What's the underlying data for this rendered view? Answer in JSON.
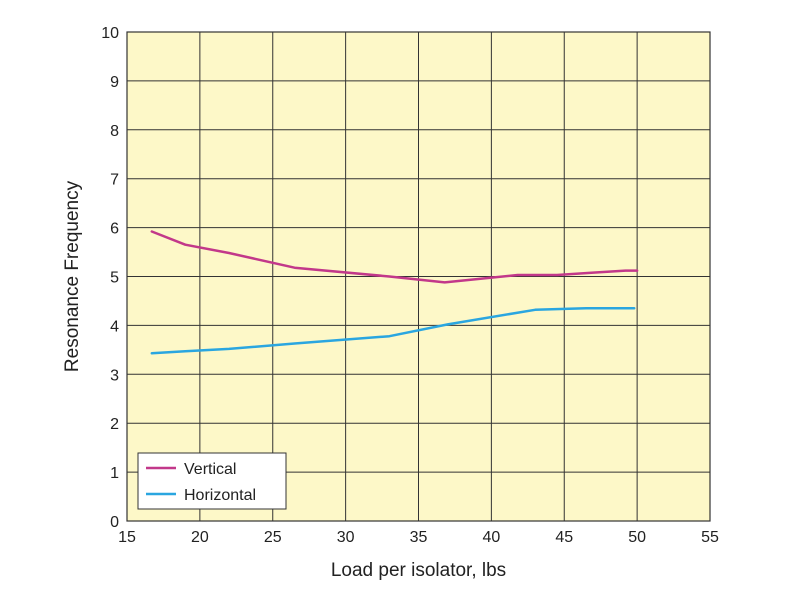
{
  "chart_data": {
    "type": "line",
    "title": "",
    "xlabel": "Load per isolator, lbs",
    "ylabel": "Resonance Frequency",
    "xlim": [
      15,
      55
    ],
    "ylim": [
      0,
      10
    ],
    "xticks": [
      "15",
      "20",
      "25",
      "30",
      "35",
      "40",
      "45",
      "50",
      "55"
    ],
    "yticks": [
      "0",
      "1",
      "2",
      "3",
      "4",
      "5",
      "6",
      "7",
      "8",
      "9",
      "10"
    ],
    "grid": true,
    "legend_position": "bottom-left",
    "plot_background": "#fdf8c8",
    "series": [
      {
        "name": "Vertical",
        "color": "#c2388a",
        "x": [
          16.7,
          19,
          22,
          26.5,
          33,
          36.8,
          41.8,
          44.5,
          47,
          49.2,
          50
        ],
        "y": [
          5.92,
          5.65,
          5.48,
          5.18,
          5.0,
          4.88,
          5.03,
          5.03,
          5.08,
          5.12,
          5.12
        ]
      },
      {
        "name": "Horizontal",
        "color": "#2aa6e0",
        "x": [
          16.7,
          19,
          22,
          26.5,
          33,
          37,
          43,
          46.5,
          49.8
        ],
        "y": [
          3.43,
          3.47,
          3.52,
          3.63,
          3.78,
          4.02,
          4.32,
          4.35,
          4.35
        ]
      }
    ]
  }
}
